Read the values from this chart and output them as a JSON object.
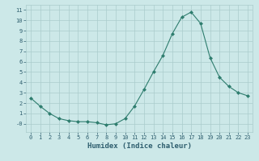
{
  "x": [
    0,
    1,
    2,
    3,
    4,
    5,
    6,
    7,
    8,
    9,
    10,
    11,
    12,
    13,
    14,
    15,
    16,
    17,
    18,
    19,
    20,
    21,
    22,
    23
  ],
  "y": [
    2.5,
    1.7,
    1.0,
    0.5,
    0.3,
    0.2,
    0.2,
    0.1,
    -0.1,
    0.0,
    0.5,
    1.7,
    3.3,
    5.0,
    6.6,
    8.7,
    10.3,
    10.8,
    9.7,
    6.4,
    4.5,
    3.6,
    3.0,
    2.7
  ],
  "line_color": "#2e7d6e",
  "marker": "D",
  "marker_size": 2.0,
  "xlabel": "Humidex (Indice chaleur)",
  "ylim": [
    -0.8,
    11.5
  ],
  "xlim": [
    -0.5,
    23.5
  ],
  "ytick_labels": [
    "11",
    "10",
    "9",
    "8",
    "7",
    "6",
    "5",
    "4",
    "3",
    "2",
    "1",
    "-0"
  ],
  "ytick_vals": [
    11,
    10,
    9,
    8,
    7,
    6,
    5,
    4,
    3,
    2,
    1,
    0
  ],
  "xticks": [
    0,
    1,
    2,
    3,
    4,
    5,
    6,
    7,
    8,
    9,
    10,
    11,
    12,
    13,
    14,
    15,
    16,
    17,
    18,
    19,
    20,
    21,
    22,
    23
  ],
  "bg_color": "#cce8e8",
  "grid_color": "#aacccc",
  "font_color": "#2e5e6e",
  "tick_fontsize": 5.0,
  "xlabel_fontsize": 6.5,
  "linewidth": 0.8
}
